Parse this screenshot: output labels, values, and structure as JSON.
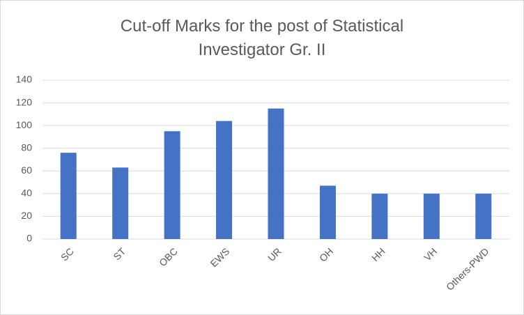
{
  "chart_data": {
    "type": "bar",
    "title": "Cut-off Marks for the post of Statistical Investigator Gr. II",
    "categories": [
      "SC",
      "ST",
      "OBC",
      "EWS",
      "UR",
      "OH",
      "HH",
      "VH",
      "Others-PWD"
    ],
    "values": [
      76,
      63,
      95,
      104,
      115,
      47,
      40,
      40,
      40
    ],
    "color": "#4472c4",
    "ylim": [
      0,
      140
    ],
    "yticks": [
      0,
      20,
      40,
      60,
      80,
      100,
      120,
      140
    ],
    "grid": true
  }
}
